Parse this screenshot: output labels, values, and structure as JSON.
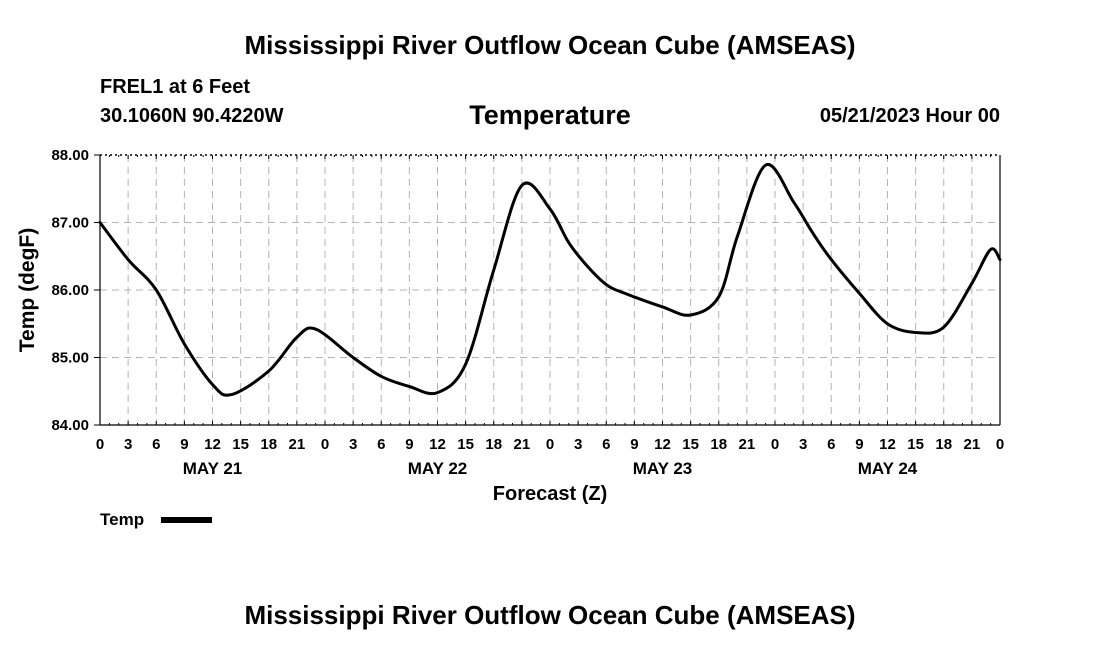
{
  "header": {
    "title": "Mississippi River Outflow Ocean Cube (AMSEAS)",
    "station": "FREL1 at 6 Feet",
    "coords": "30.1060N  90.4220W",
    "date": "05/21/2023 Hour 00"
  },
  "footer": {
    "title": "Mississippi River Outflow Ocean Cube (AMSEAS)"
  },
  "chart_data": {
    "type": "line",
    "title": "Temperature",
    "xlabel": "Forecast (Z)",
    "ylabel": "Temp (degF)",
    "xlim": [
      0,
      96
    ],
    "ylim": [
      84.0,
      88.0
    ],
    "y_ticks": [
      84.0,
      85.0,
      86.0,
      87.0,
      88.0
    ],
    "y_tick_labels": [
      "84.00",
      "85.00",
      "86.00",
      "87.00",
      "88.00"
    ],
    "x_ticks": [
      0,
      3,
      6,
      9,
      12,
      15,
      18,
      21,
      24,
      27,
      30,
      33,
      36,
      39,
      42,
      45,
      48,
      51,
      54,
      57,
      60,
      63,
      66,
      69,
      72,
      75,
      78,
      81,
      84,
      87,
      90,
      93,
      96
    ],
    "x_tick_labels": [
      "0",
      "3",
      "6",
      "9",
      "12",
      "15",
      "18",
      "21",
      "0",
      "3",
      "6",
      "9",
      "12",
      "15",
      "18",
      "21",
      "0",
      "3",
      "6",
      "9",
      "12",
      "15",
      "18",
      "21",
      "0",
      "3",
      "6",
      "9",
      "12",
      "15",
      "18",
      "21",
      "0"
    ],
    "day_labels": [
      {
        "label": "MAY 21",
        "x": 12
      },
      {
        "label": "MAY 22",
        "x": 36
      },
      {
        "label": "MAY 23",
        "x": 60
      },
      {
        "label": "MAY 24",
        "x": 84
      }
    ],
    "grid": true,
    "legend": {
      "label": "Temp",
      "position": "bottom-left"
    },
    "series": [
      {
        "name": "Temp",
        "x": [
          0,
          3,
          6,
          9,
          12,
          14,
          18,
          21,
          23,
          27,
          30,
          33,
          36,
          39,
          42,
          45,
          48,
          50,
          52,
          54,
          56,
          60,
          63,
          66,
          68,
          71,
          74,
          76,
          78,
          81,
          84,
          87,
          90,
          93,
          95,
          96
        ],
        "values": [
          87.0,
          86.45,
          86.0,
          85.2,
          84.6,
          84.45,
          84.8,
          85.3,
          85.42,
          85.0,
          84.72,
          84.57,
          84.48,
          84.9,
          86.3,
          87.55,
          87.2,
          86.7,
          86.35,
          86.08,
          85.95,
          85.75,
          85.63,
          85.9,
          86.8,
          87.85,
          87.3,
          86.85,
          86.45,
          85.95,
          85.5,
          85.37,
          85.45,
          86.1,
          86.6,
          86.45
        ]
      }
    ]
  }
}
